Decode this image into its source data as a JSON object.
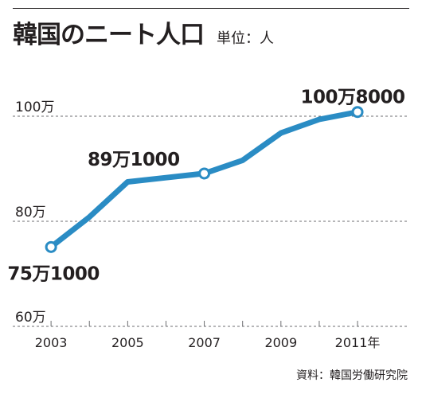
{
  "title": "韓国のニート人口",
  "unit": "単位：人",
  "source": "資料：韓国労働研究院",
  "chart_data": {
    "type": "line",
    "title": "韓国のニート人口",
    "xlabel": "",
    "ylabel": "",
    "x": [
      2003,
      2004,
      2005,
      2006,
      2007,
      2008,
      2009,
      2010,
      2011
    ],
    "values": [
      751000,
      808000,
      875000,
      883000,
      891000,
      916000,
      968000,
      994000,
      1008000
    ],
    "xlim": [
      2002,
      2012.35
    ],
    "ylim": [
      600000,
      1000000
    ],
    "y_ticks": [
      {
        "value": 600000,
        "label": "60万"
      },
      {
        "value": 800000,
        "label": "80万"
      },
      {
        "value": 1000000,
        "label": "100万"
      }
    ],
    "x_tick_labels": [
      {
        "x": 2003,
        "label": "2003"
      },
      {
        "x": 2005,
        "label": "2005"
      },
      {
        "x": 2007,
        "label": "2007"
      },
      {
        "x": 2009,
        "label": "2009"
      },
      {
        "x": 2011,
        "label": "2011年"
      }
    ],
    "annotations": [
      {
        "x": 2003,
        "y": 751000,
        "label": "75万1000",
        "placement": "below"
      },
      {
        "x": 2007,
        "y": 891000,
        "label": "89万1000",
        "placement": "upper-left"
      },
      {
        "x": 2011,
        "y": 1008000,
        "label": "100万8000",
        "placement": "above"
      }
    ],
    "grid": "horizontal-dashed",
    "colors": {
      "line": "#2a8cc4",
      "text": "#231f20",
      "grid": "#6d6e71"
    }
  }
}
